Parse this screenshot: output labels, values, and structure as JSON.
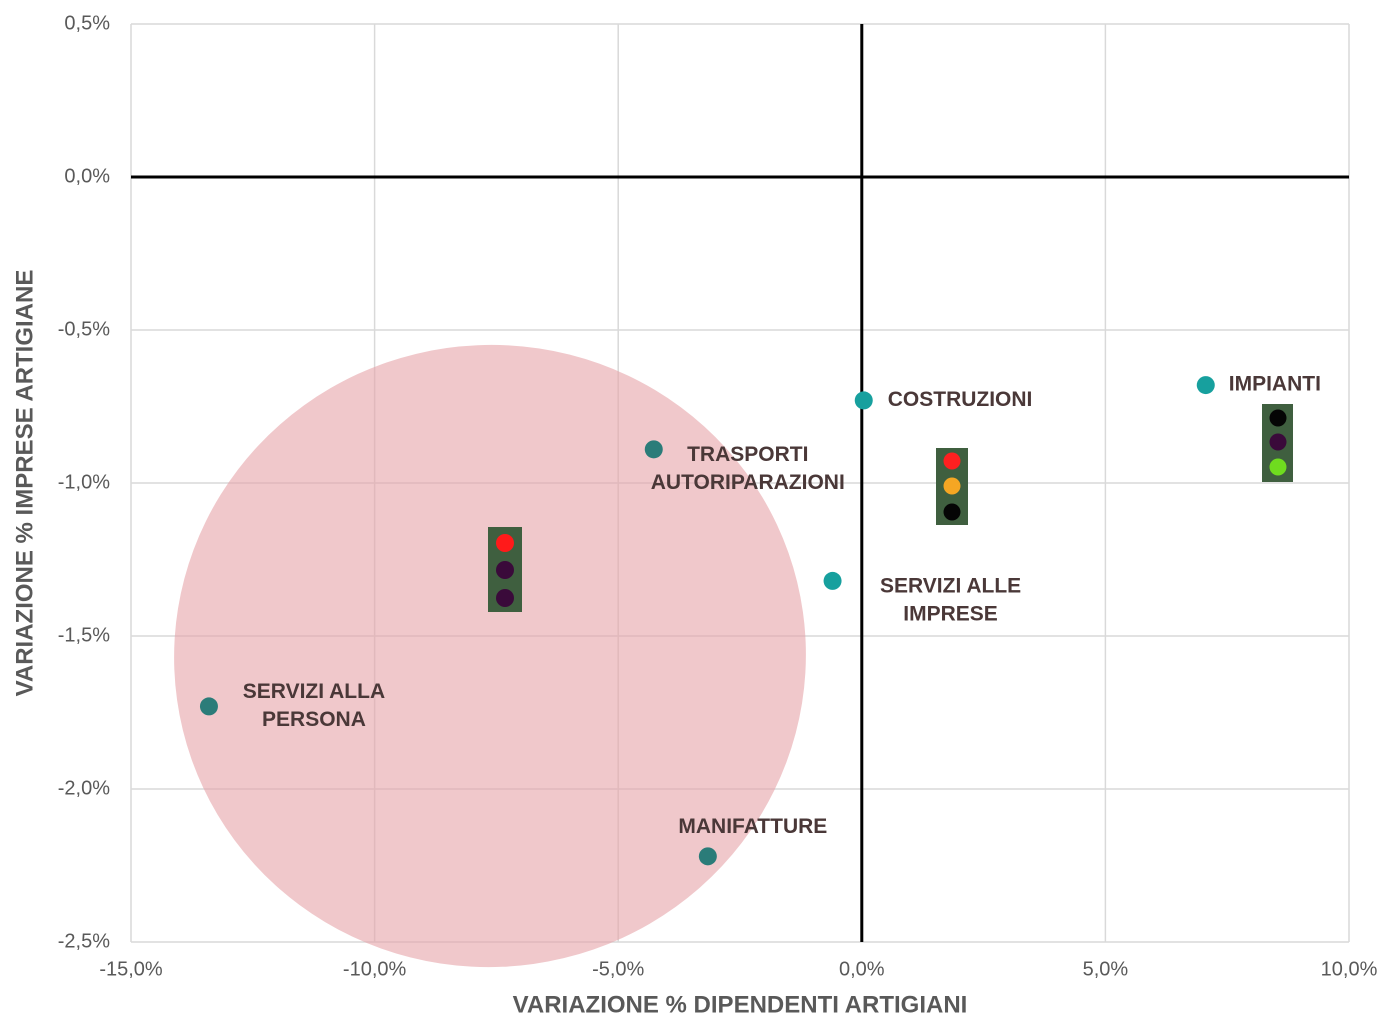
{
  "chart_data": {
    "type": "scatter",
    "x_label": "VARIAZIONE % DIPENDENTI ARTIGIANI",
    "y_label": "VARIAZIONE % IMPRESE ARTIGIANE",
    "xlim": [
      -15,
      10
    ],
    "ylim": [
      -2.5,
      0.5
    ],
    "xticks": [
      {
        "value": -15,
        "label": "-15,0%"
      },
      {
        "value": -10,
        "label": "-10,0%"
      },
      {
        "value": -5,
        "label": "-5,0%"
      },
      {
        "value": 0,
        "label": "0,0%"
      },
      {
        "value": 5,
        "label": "5,0%"
      },
      {
        "value": 10,
        "label": "10,0%"
      }
    ],
    "yticks": [
      {
        "value": 0.5,
        "label": "0,5%"
      },
      {
        "value": 0,
        "label": "0,0%"
      },
      {
        "value": -0.5,
        "label": "-0,5%"
      },
      {
        "value": -1,
        "label": "-1,0%"
      },
      {
        "value": -1.5,
        "label": "-1,5%"
      },
      {
        "value": -2,
        "label": "-2,0%"
      },
      {
        "value": -2.5,
        "label": "-2,5%"
      }
    ],
    "grid": true,
    "points": [
      {
        "label": [
          "COSTRUZIONI"
        ],
        "x": 0.04,
        "y": -0.73,
        "color": "#17a09e"
      },
      {
        "label": [
          "IMPIANTI"
        ],
        "x": 7.06,
        "y": -0.68,
        "color": "#17a09e"
      },
      {
        "label": [
          "TRASPORTI",
          "AUTORIPARAZIONI"
        ],
        "x": -4.27,
        "y": -0.89,
        "color": "#2b7c79"
      },
      {
        "label": [
          "SERVIZI ALLE",
          "IMPRESE"
        ],
        "x": -0.6,
        "y": -1.32,
        "color": "#17a09e"
      },
      {
        "label": [
          "SERVIZI ALLA",
          "PERSONA"
        ],
        "x": -13.4,
        "y": -1.73,
        "color": "#2b7c79"
      },
      {
        "label": [
          "MANIFATTURE"
        ],
        "x": -3.16,
        "y": -2.22,
        "color": "#2b7c79"
      }
    ]
  }
}
